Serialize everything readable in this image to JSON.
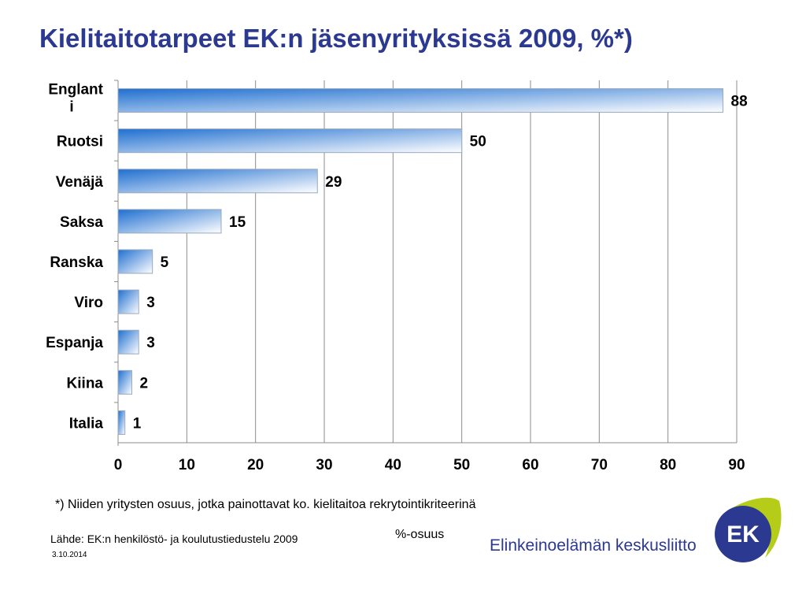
{
  "title": "Kielitaitotarpeet EK:n jäsenyrityksissä 2009, %*)",
  "footnote": "*) Niiden yritysten osuus, jotka painottavat ko. kielitaitoa rekrytointikriteerinä",
  "source": "Lähde: EK:n henkilöstö- ja koulutustiedustelu 2009",
  "date": "3.10.2014",
  "organization": "Elinkeinoelämän keskusliitto",
  "logo_text": "EK",
  "colors": {
    "title": "#2b3990",
    "bar_dark": "#1f6fd0",
    "bar_light": "#ffffff",
    "logo_navy": "#2b3990",
    "logo_green": "#b5cc18"
  },
  "chart_data": {
    "type": "bar",
    "orientation": "horizontal",
    "categories": [
      "Englanti",
      "Ruotsi",
      "Venäjä",
      "Saksa",
      "Ranska",
      "Viro",
      "Espanja",
      "Kiina",
      "Italia"
    ],
    "category_labels": [
      [
        "Englant",
        "i"
      ],
      [
        "Ruotsi"
      ],
      [
        "Venäjä"
      ],
      [
        "Saksa"
      ],
      [
        "Ranska"
      ],
      [
        "Viro"
      ],
      [
        "Espanja"
      ],
      [
        "Kiina"
      ],
      [
        "Italia"
      ]
    ],
    "values": [
      88,
      50,
      29,
      15,
      5,
      3,
      3,
      2,
      1
    ],
    "xlim": [
      0,
      90
    ],
    "xticks": [
      0,
      10,
      20,
      30,
      40,
      50,
      60,
      70,
      80,
      90
    ],
    "xlabel": "%-osuus",
    "ylabel": "",
    "grid": true,
    "data_labels": true
  }
}
